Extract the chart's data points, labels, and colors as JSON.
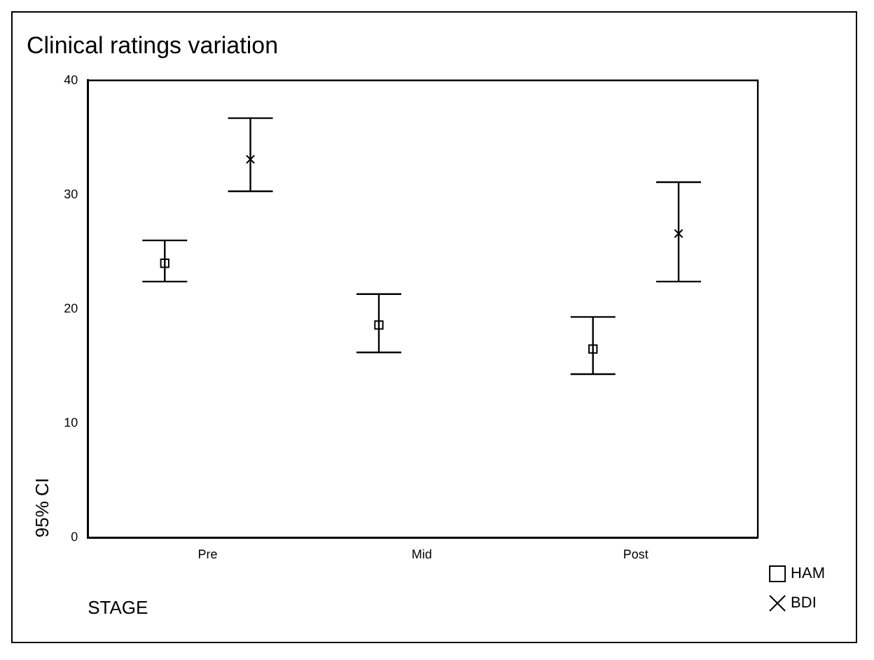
{
  "chart_data": {
    "type": "scatter",
    "title": "Clinical ratings variation",
    "xlabel": "STAGE",
    "ylabel": "95% CI",
    "categories": [
      "Pre",
      "Mid",
      "Post"
    ],
    "ylim": [
      0,
      40
    ],
    "yticks": [
      0,
      10,
      20,
      30,
      40
    ],
    "grid": false,
    "legend": "bottom right",
    "series": [
      {
        "name": "HAM",
        "color": "#000000",
        "marker": "square",
        "values": [
          24.0,
          18.6,
          16.5
        ],
        "errors": [
          [
            22.4,
            26.0
          ],
          [
            16.2,
            21.3
          ],
          [
            14.3,
            19.3
          ]
        ]
      },
      {
        "name": "BDI",
        "color": "#000000",
        "marker": "cross",
        "values": [
          33.1,
          null,
          26.6
        ],
        "errors": [
          [
            30.3,
            36.7
          ],
          null,
          [
            22.4,
            31.1
          ]
        ]
      }
    ]
  }
}
